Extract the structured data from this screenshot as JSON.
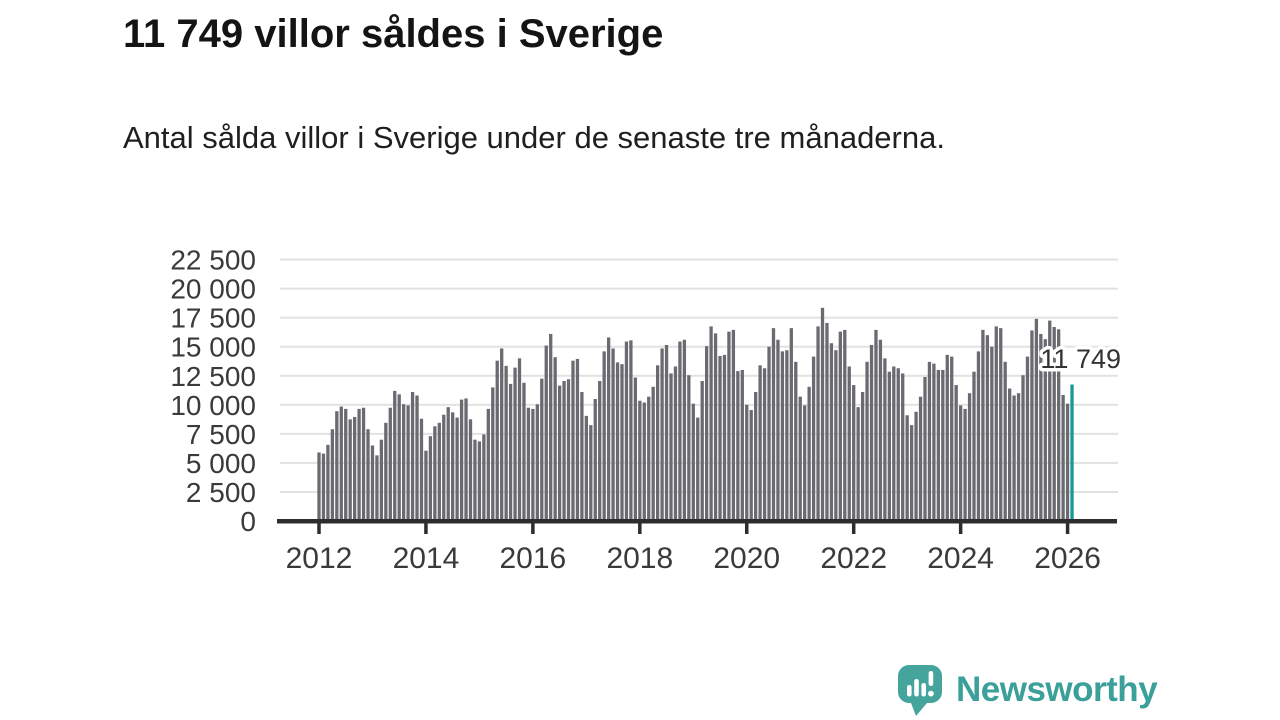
{
  "title": "11 749 villor såldes i Sverige",
  "subtitle": "Antal sålda villor i Sverige under de senaste tre månaderna.",
  "annotation": {
    "label": "11 749",
    "value": 11749
  },
  "logo": {
    "text": "Newsworthy",
    "icon": "newsworthy-speech-bubble-chart-icon"
  },
  "colors": {
    "bar": "#6a6a71",
    "highlight": "#179a94",
    "grid": "#e2e2e2",
    "axis": "#2d2d30",
    "axis_text": "#3a3a3a",
    "annotation_text": "#333333",
    "logo_teal": "#45a59d"
  },
  "chart_data": {
    "type": "bar",
    "title": "11 749 villor såldes i Sverige",
    "subtitle": "Antal sålda villor i Sverige under de senaste tre månaderna.",
    "xlabel": "",
    "ylabel": "",
    "grid": true,
    "ylim": [
      0,
      22500
    ],
    "start_month": "2012-01",
    "end_month": "2026-02",
    "frequency": "monthly",
    "highlighted_value": 11749,
    "y_ticks": [
      {
        "value": 0,
        "label": "0"
      },
      {
        "value": 2500,
        "label": "2 500"
      },
      {
        "value": 5000,
        "label": "5 000"
      },
      {
        "value": 7500,
        "label": "7 500"
      },
      {
        "value": 10000,
        "label": "10 000"
      },
      {
        "value": 12500,
        "label": "12 500"
      },
      {
        "value": 15000,
        "label": "15 000"
      },
      {
        "value": 17500,
        "label": "17 500"
      },
      {
        "value": 20000,
        "label": "20 000"
      },
      {
        "value": 22500,
        "label": "22 500"
      }
    ],
    "x_ticks": [
      {
        "year": 2012,
        "label": "2012"
      },
      {
        "year": 2014,
        "label": "2014"
      },
      {
        "year": 2016,
        "label": "2016"
      },
      {
        "year": 2018,
        "label": "2018"
      },
      {
        "year": 2020,
        "label": "2020"
      },
      {
        "year": 2022,
        "label": "2022"
      },
      {
        "year": 2024,
        "label": "2024"
      },
      {
        "year": 2026,
        "label": "2026"
      }
    ],
    "values": [
      5900,
      5800,
      6550,
      7900,
      9450,
      9850,
      9650,
      8750,
      8950,
      9650,
      9750,
      7900,
      6500,
      5650,
      7000,
      8450,
      9750,
      11200,
      10900,
      10050,
      9950,
      11100,
      10800,
      8800,
      6050,
      7300,
      8150,
      8450,
      9150,
      9800,
      9350,
      8900,
      10450,
      10550,
      8750,
      7000,
      6850,
      7450,
      9650,
      11500,
      13800,
      14850,
      13350,
      11800,
      13200,
      14000,
      11900,
      9750,
      9650,
      10050,
      12250,
      15100,
      16100,
      14100,
      11650,
      12050,
      12200,
      13800,
      13950,
      11100,
      9050,
      8250,
      10500,
      12050,
      14600,
      15800,
      14850,
      13650,
      13500,
      15450,
      15550,
      12350,
      10350,
      10200,
      10700,
      11550,
      13400,
      14850,
      15150,
      12700,
      13300,
      15450,
      15600,
      12550,
      10100,
      8900,
      12050,
      15050,
      16750,
      16150,
      14200,
      14300,
      16300,
      16450,
      12900,
      13000,
      10000,
      9550,
      11100,
      13400,
      13150,
      15000,
      16600,
      15600,
      14600,
      14700,
      16600,
      13700,
      10700,
      9950,
      11550,
      14150,
      16750,
      18350,
      17050,
      15300,
      14700,
      16300,
      16450,
      13300,
      11700,
      9800,
      11100,
      13700,
      15150,
      16450,
      15600,
      14000,
      12850,
      13300,
      13150,
      12700,
      9100,
      8250,
      9400,
      10700,
      12400,
      13700,
      13550,
      13000,
      13000,
      14300,
      14150,
      11700,
      9950,
      9650,
      11000,
      12850,
      14600,
      16450,
      16000,
      15000,
      16750,
      16600,
      13700,
      11400,
      10800,
      11000,
      12550,
      14150,
      16400,
      17400,
      16100,
      15650,
      17250,
      16700,
      16500,
      10850,
      10100,
      11749
    ]
  }
}
